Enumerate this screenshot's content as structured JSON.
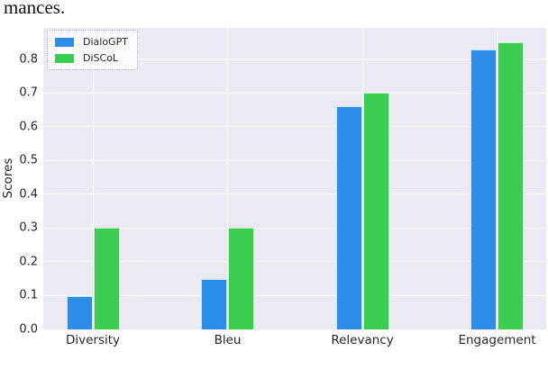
{
  "caption": "mances.",
  "chart_data": {
    "type": "bar",
    "categories": [
      "Diversity",
      "Bleu",
      "Relevancy",
      "Engagement"
    ],
    "series": [
      {
        "name": "DialoGPT",
        "color": "#2d8ee9",
        "values": [
          0.1,
          0.15,
          0.66,
          0.83
        ]
      },
      {
        "name": "DiSCoL",
        "color": "#3bcd51",
        "values": [
          0.3,
          0.3,
          0.7,
          0.85
        ]
      }
    ],
    "title": "",
    "xlabel": "",
    "ylabel": "Scores",
    "yticks": [
      0.0,
      0.1,
      0.2,
      0.3,
      0.4,
      0.5,
      0.6,
      0.7,
      0.8
    ],
    "ylim": [
      0,
      0.893
    ],
    "grid": true,
    "grid_color": "#ffffff",
    "plot_background": "#eaeaf2",
    "legend_position": "upper left"
  }
}
